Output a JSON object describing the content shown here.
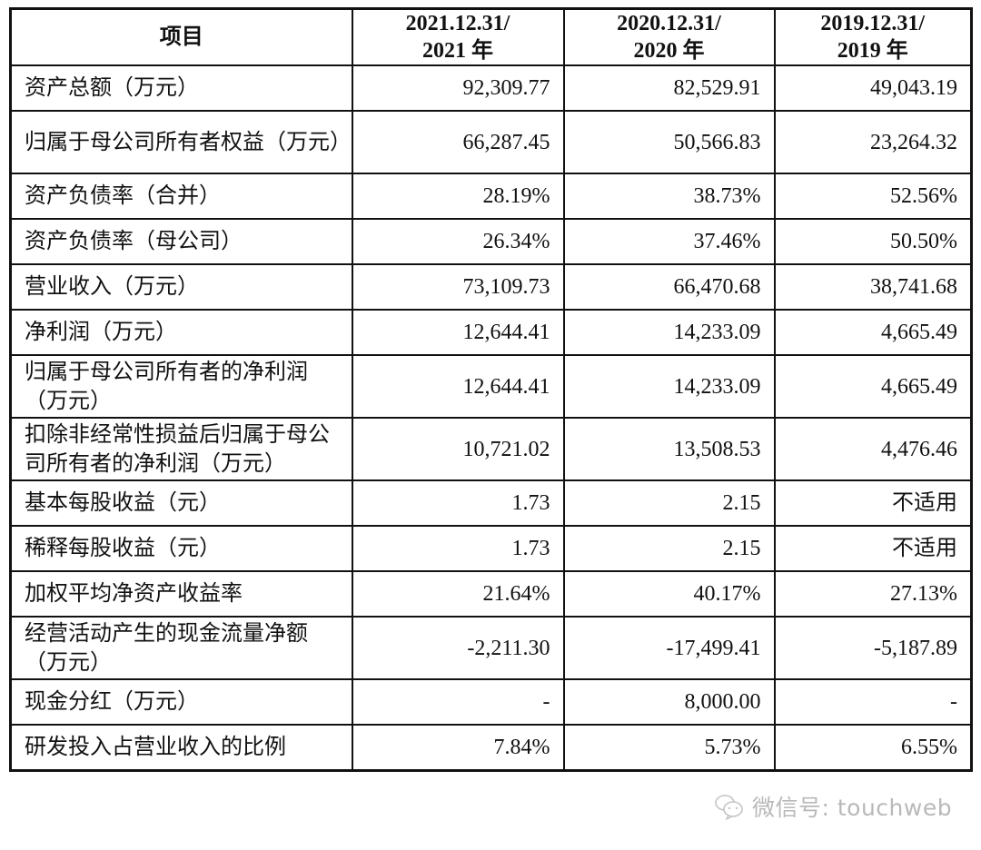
{
  "table": {
    "headers": [
      {
        "line1": "项目",
        "line2": ""
      },
      {
        "line1": "2021.12.31/",
        "line2": "2021 年"
      },
      {
        "line1": "2020.12.31/",
        "line2": "2020 年"
      },
      {
        "line1": "2019.12.31/",
        "line2": "2019 年"
      }
    ],
    "rows": [
      {
        "label": "资产总额（万元）",
        "values": [
          "92,309.77",
          "82,529.91",
          "49,043.19"
        ],
        "lines": 1
      },
      {
        "label": "归属于母公司所有者权益（万元）",
        "values": [
          "66,287.45",
          "50,566.83",
          "23,264.32"
        ],
        "lines": 2
      },
      {
        "label": "资产负债率（合并）",
        "values": [
          "28.19%",
          "38.73%",
          "52.56%"
        ],
        "lines": 1
      },
      {
        "label": "资产负债率（母公司）",
        "values": [
          "26.34%",
          "37.46%",
          "50.50%"
        ],
        "lines": 1
      },
      {
        "label": "营业收入（万元）",
        "values": [
          "73,109.73",
          "66,470.68",
          "38,741.68"
        ],
        "lines": 1
      },
      {
        "label": "净利润（万元）",
        "values": [
          "12,644.41",
          "14,233.09",
          "4,665.49"
        ],
        "lines": 1
      },
      {
        "label": "归属于母公司所有者的净利润（万元）",
        "values": [
          "12,644.41",
          "14,233.09",
          "4,665.49"
        ],
        "lines": 2
      },
      {
        "label": "扣除非经常性损益后归属于母公司所有者的净利润（万元）",
        "values": [
          "10,721.02",
          "13,508.53",
          "4,476.46"
        ],
        "lines": 2
      },
      {
        "label": "基本每股收益（元）",
        "values": [
          "1.73",
          "2.15",
          "不适用"
        ],
        "lines": 1
      },
      {
        "label": "稀释每股收益（元）",
        "values": [
          "1.73",
          "2.15",
          "不适用"
        ],
        "lines": 1
      },
      {
        "label": "加权平均净资产收益率",
        "values": [
          "21.64%",
          "40.17%",
          "27.13%"
        ],
        "lines": 1
      },
      {
        "label": "经营活动产生的现金流量净额（万元）",
        "values": [
          "-2,211.30",
          "-17,499.41",
          "-5,187.89"
        ],
        "lines": 2
      },
      {
        "label": "现金分红（万元）",
        "values": [
          "-",
          "8,000.00",
          "-"
        ],
        "lines": 1
      },
      {
        "label": "研发投入占营业收入的比例",
        "values": [
          "7.84%",
          "5.73%",
          "6.55%"
        ],
        "lines": 1
      }
    ]
  },
  "watermark": {
    "icon": "wechat-icon",
    "text": "微信号: touchweb",
    "color": "#b9b9b9"
  }
}
